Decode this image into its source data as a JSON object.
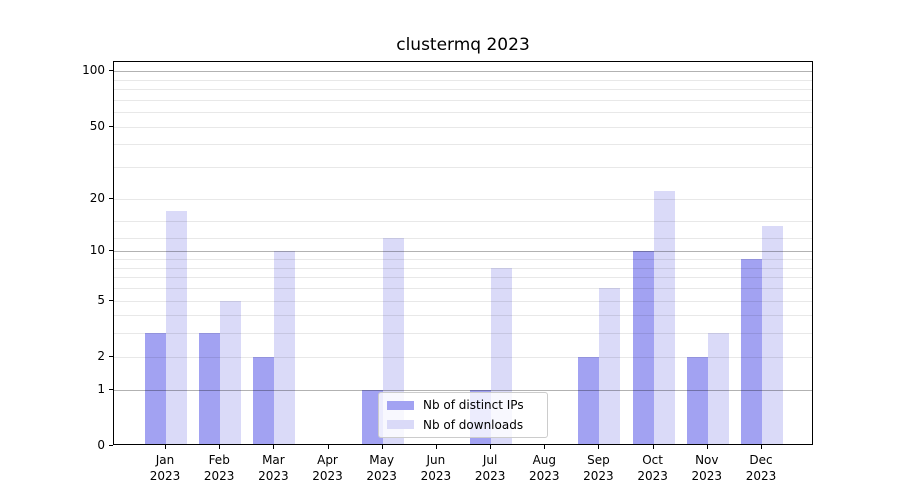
{
  "figure": {
    "background": "#ffffff"
  },
  "chart_data": {
    "type": "bar",
    "title": "clustermq 2023",
    "scale": "log1p",
    "grid_on": true,
    "legend_position": "lower center",
    "categories": [
      "Jan",
      "Feb",
      "Mar",
      "Apr",
      "May",
      "Jun",
      "Jul",
      "Aug",
      "Sep",
      "Oct",
      "Nov",
      "Dec"
    ],
    "year_label": "2023",
    "series": [
      {
        "name": "Nb of distinct IPs",
        "color": "#a2a2f2",
        "values": [
          3,
          3,
          2,
          0,
          1,
          0,
          1,
          0,
          2,
          10,
          2,
          9
        ]
      },
      {
        "name": "Nb of downloads",
        "color": "#dadaf8",
        "values": [
          17,
          5,
          10,
          0,
          12,
          0,
          8,
          0,
          6,
          22,
          3,
          14
        ]
      }
    ],
    "y_axis": {
      "tick_labels": [
        "0",
        "1",
        "2",
        "5",
        "10",
        "20",
        "50",
        "100"
      ],
      "tick_values": [
        0,
        1,
        2,
        5,
        10,
        20,
        50,
        100
      ],
      "axis_max": 112,
      "major_gridlines": [
        1,
        10,
        100
      ],
      "minor_gridlines": [
        2,
        3,
        4,
        5,
        6,
        7,
        8,
        9,
        12,
        15,
        20,
        30,
        40,
        50,
        60,
        70,
        80,
        90
      ]
    }
  }
}
